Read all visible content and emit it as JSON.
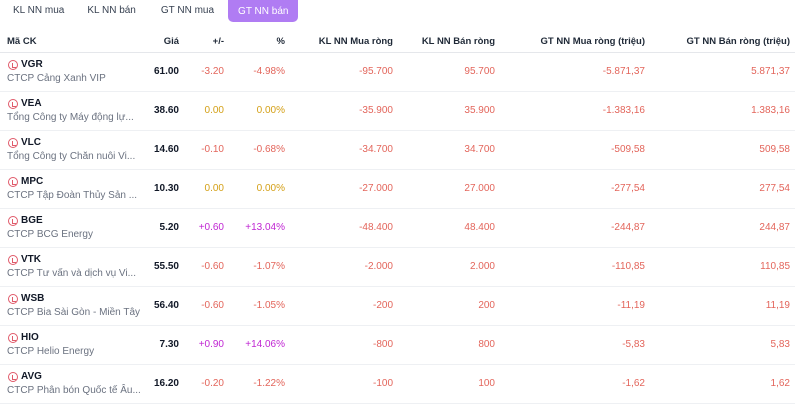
{
  "tabs": [
    {
      "label": "KL NN mua",
      "active": false
    },
    {
      "label": "KL NN bán",
      "active": false
    },
    {
      "label": "GT NN mua",
      "active": false
    },
    {
      "label": "GT NN bán",
      "active": true
    }
  ],
  "columns": {
    "symbol": "Mã CK",
    "price": "Giá",
    "change": "+/-",
    "percent": "%",
    "buy_qty": "KL NN Mua ròng",
    "sell_qty": "KL NN Bán ròng",
    "buy_value": "GT NN Mua ròng (triệu)",
    "sell_value": "GT NN Bán ròng (triệu)"
  },
  "colors": {
    "down": "#e3655b",
    "reference": "#d4a017",
    "up": "#c026d3",
    "accent": "#b07cf3"
  },
  "rows": [
    {
      "symbol": "VGR",
      "company": "CTCP Cảng Xanh VIP",
      "price": "61.00",
      "change": "-3.20",
      "percent": "-4.98%",
      "trend": "down",
      "buy_qty": "-95.700",
      "sell_qty": "95.700",
      "buy_value": "-5.871,37",
      "sell_value": "5.871,37"
    },
    {
      "symbol": "VEA",
      "company": "Tổng Công ty Máy động lự...",
      "price": "38.60",
      "change": "0.00",
      "percent": "0.00%",
      "trend": "ref",
      "buy_qty": "-35.900",
      "sell_qty": "35.900",
      "buy_value": "-1.383,16",
      "sell_value": "1.383,16"
    },
    {
      "symbol": "VLC",
      "company": "Tổng Công ty Chăn nuôi Vi...",
      "price": "14.60",
      "change": "-0.10",
      "percent": "-0.68%",
      "trend": "down",
      "buy_qty": "-34.700",
      "sell_qty": "34.700",
      "buy_value": "-509,58",
      "sell_value": "509,58"
    },
    {
      "symbol": "MPC",
      "company": "CTCP Tập Đoàn Thủy Sản ...",
      "price": "10.30",
      "change": "0.00",
      "percent": "0.00%",
      "trend": "ref",
      "buy_qty": "-27.000",
      "sell_qty": "27.000",
      "buy_value": "-277,54",
      "sell_value": "277,54"
    },
    {
      "symbol": "BGE",
      "company": "CTCP BCG Energy",
      "price": "5.20",
      "change": "+0.60",
      "percent": "+13.04%",
      "trend": "up",
      "buy_qty": "-48.400",
      "sell_qty": "48.400",
      "buy_value": "-244,87",
      "sell_value": "244,87"
    },
    {
      "symbol": "VTK",
      "company": "CTCP Tư vấn và dịch vụ Vi...",
      "price": "55.50",
      "change": "-0.60",
      "percent": "-1.07%",
      "trend": "down",
      "buy_qty": "-2.000",
      "sell_qty": "2.000",
      "buy_value": "-110,85",
      "sell_value": "110,85"
    },
    {
      "symbol": "WSB",
      "company": "CTCP Bia Sài Gòn - Miền Tây",
      "price": "56.40",
      "change": "-0.60",
      "percent": "-1.05%",
      "trend": "down",
      "buy_qty": "-200",
      "sell_qty": "200",
      "buy_value": "-11,19",
      "sell_value": "11,19"
    },
    {
      "symbol": "HIO",
      "company": "CTCP Helio Energy",
      "price": "7.30",
      "change": "+0.90",
      "percent": "+14.06%",
      "trend": "up",
      "buy_qty": "-800",
      "sell_qty": "800",
      "buy_value": "-5,83",
      "sell_value": "5,83"
    },
    {
      "symbol": "AVG",
      "company": "CTCP Phân bón Quốc tế Âu...",
      "price": "16.20",
      "change": "-0.20",
      "percent": "-1.22%",
      "trend": "down",
      "buy_qty": "-100",
      "sell_qty": "100",
      "buy_value": "-1,62",
      "sell_value": "1,62"
    }
  ]
}
